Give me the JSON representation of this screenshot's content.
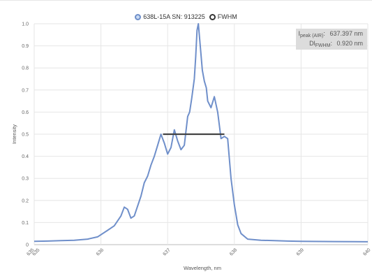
{
  "chart_data": {
    "type": "line",
    "xlabel": "Wavelength, nm",
    "ylabel": "Intensity",
    "xlim": [
      635,
      640
    ],
    "ylim": [
      0,
      1
    ],
    "x_ticks": [
      "635",
      "635",
      "636",
      "637",
      "638",
      "639",
      "640"
    ],
    "y_ticks": [
      "0",
      "0.1",
      "0.2",
      "0.3",
      "0.4",
      "0.5",
      "0.6",
      "0.7",
      "0.8",
      "0.9",
      "1.0"
    ],
    "grid": true,
    "legend_position": "top",
    "series": [
      {
        "name": "638L-15A SN: 913225",
        "color": "#6f8fca",
        "x": [
          635.0,
          635.2,
          635.4,
          635.6,
          635.8,
          635.95,
          636.1,
          636.2,
          636.3,
          636.35,
          636.4,
          636.45,
          636.5,
          636.6,
          636.65,
          636.7,
          636.75,
          636.8,
          636.85,
          636.9,
          636.95,
          637.0,
          637.05,
          637.1,
          637.15,
          637.2,
          637.25,
          637.3,
          637.33,
          637.36,
          637.4,
          637.42,
          637.44,
          637.46,
          637.48,
          637.5,
          637.52,
          637.55,
          637.58,
          637.6,
          637.65,
          637.7,
          637.75,
          637.8,
          637.85,
          637.9,
          637.95,
          638.0,
          638.05,
          638.1,
          638.2,
          638.4,
          638.6,
          638.8,
          639.0,
          639.5,
          640.0
        ],
        "y": [
          0.015,
          0.016,
          0.018,
          0.02,
          0.025,
          0.035,
          0.065,
          0.085,
          0.13,
          0.17,
          0.16,
          0.12,
          0.13,
          0.22,
          0.28,
          0.31,
          0.36,
          0.4,
          0.45,
          0.5,
          0.46,
          0.41,
          0.44,
          0.52,
          0.47,
          0.43,
          0.45,
          0.58,
          0.6,
          0.66,
          0.75,
          0.85,
          0.97,
          1.0,
          0.93,
          0.86,
          0.79,
          0.74,
          0.71,
          0.65,
          0.62,
          0.67,
          0.6,
          0.48,
          0.49,
          0.48,
          0.3,
          0.18,
          0.09,
          0.05,
          0.025,
          0.02,
          0.018,
          0.016,
          0.015,
          0.014,
          0.013
        ]
      },
      {
        "name": "FWHM",
        "color": "#444444",
        "x": [
          636.93,
          637.85
        ],
        "y": [
          0.5,
          0.5
        ]
      }
    ]
  },
  "legend": {
    "items": [
      {
        "label": "638L-15A SN: 913225"
      },
      {
        "label": "FWHM"
      }
    ]
  },
  "info": {
    "peak_label": "I",
    "peak_sub": "peak (AIR)",
    "peak_sep": ":",
    "peak_value": "637.397 nm",
    "fwhm_label": "Dl",
    "fwhm_sub": "FWHM",
    "fwhm_sep": ":",
    "fwhm_value": "0.920 nm"
  }
}
